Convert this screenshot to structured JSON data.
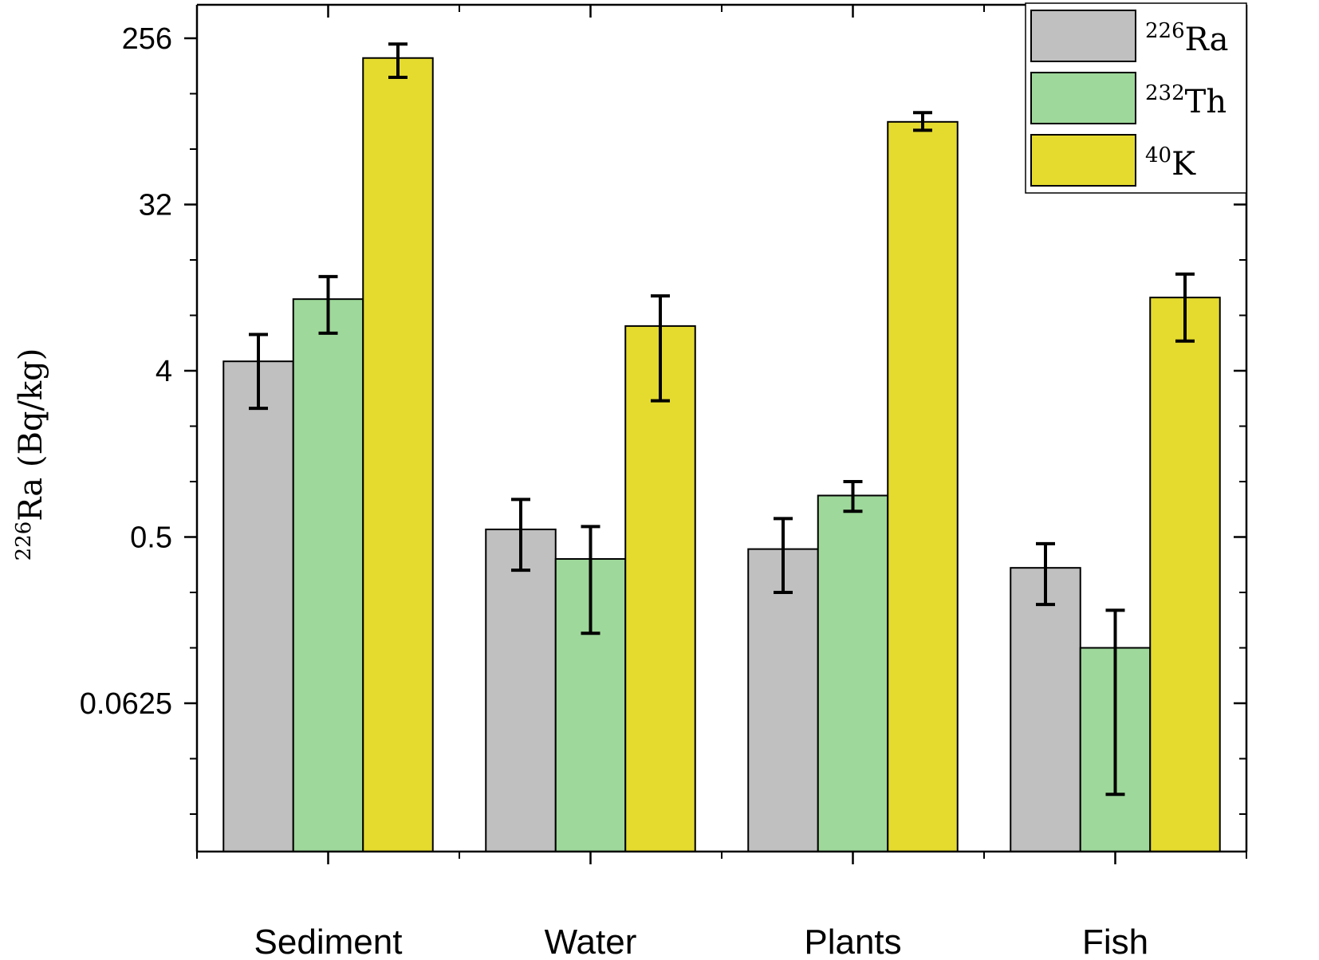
{
  "chart_data": {
    "type": "bar",
    "title": "",
    "xlabel": "",
    "ylabel": {
      "sup": "226",
      "text": "Ra (Bq/kg)"
    },
    "yscale": "log2",
    "ylim": [
      0.0117,
      450
    ],
    "yticks": [
      256,
      32,
      4,
      0.5,
      0.0625
    ],
    "ytick_labels": [
      "256",
      "32",
      "4",
      "0.5",
      "0.0625"
    ],
    "categories": [
      "Sediment",
      "Water",
      "Plants",
      "Fish"
    ],
    "series": [
      {
        "key": "ra226",
        "sup": "226",
        "name": "Ra",
        "color": "#c0c0c0",
        "values": [
          4.5,
          0.55,
          0.43,
          0.34
        ],
        "err_low": [
          2.5,
          0.33,
          0.25,
          0.215
        ],
        "err_high": [
          6.3,
          0.8,
          0.63,
          0.46
        ]
      },
      {
        "key": "th232",
        "sup": "232",
        "name": "Th",
        "color": "#9ed89a",
        "values": [
          9.8,
          0.38,
          0.84,
          0.125
        ],
        "err_low": [
          6.4,
          0.15,
          0.69,
          0.02
        ],
        "err_high": [
          13,
          0.57,
          1.0,
          0.2
        ]
      },
      {
        "key": "k40",
        "sup": "40",
        "name": "K",
        "color": "#e5db2f",
        "values": [
          200,
          7.0,
          90,
          10.0
        ],
        "err_low": [
          157,
          2.75,
          81,
          5.8
        ],
        "err_high": [
          238,
          10.2,
          101,
          13.4
        ]
      }
    ],
    "legend_position": "top-right",
    "grid": false
  }
}
